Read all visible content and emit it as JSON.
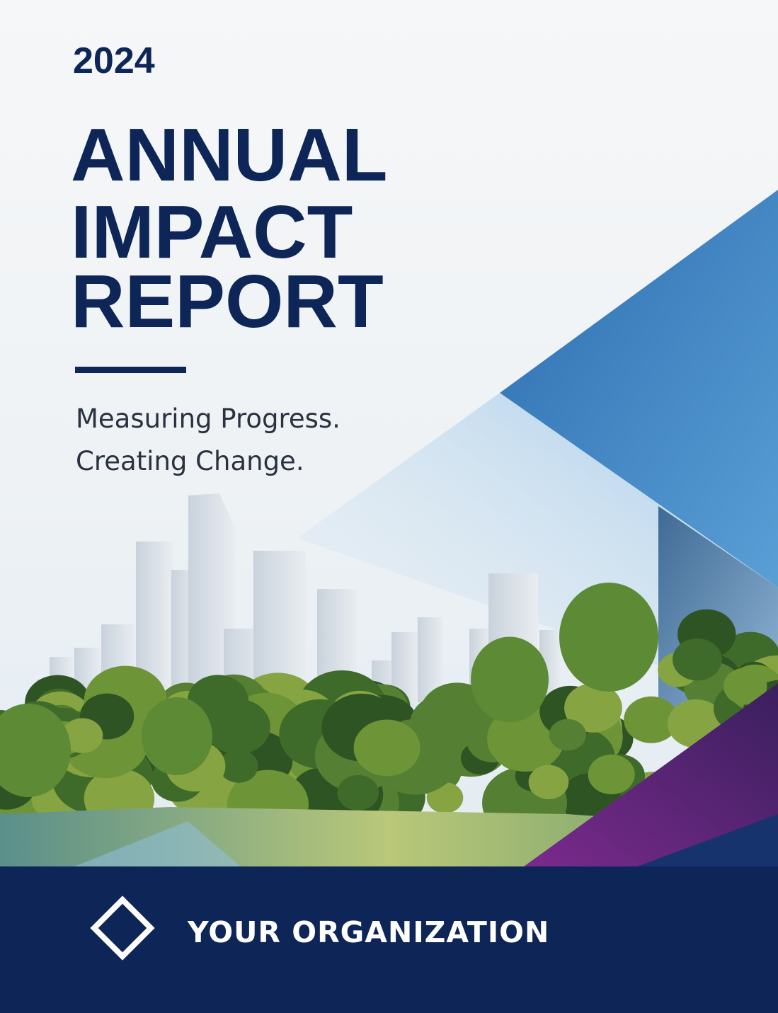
{
  "header": {
    "year": "2024",
    "title_lines": [
      "ANNUAL",
      "IMPACT",
      "REPORT"
    ],
    "tagline_lines": [
      "Measuring Progress.",
      "Creating Change."
    ]
  },
  "footer": {
    "organization": "YOUR ORGANIZATION"
  }
}
